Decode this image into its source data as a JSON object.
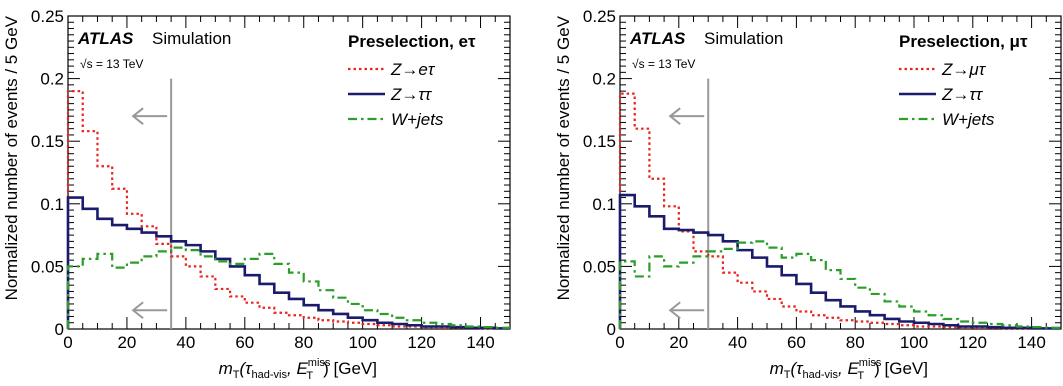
{
  "chart_data": [
    {
      "type": "line",
      "ylabel": "Normalized number of events / 5 GeV",
      "xlabel": "m_T(τ_had-vis, E_T^miss) [GeV]",
      "xlabel_parts": {
        "m": "m",
        "T": "T",
        "tau": "(τ",
        "had": "had-vis",
        "sep": ", E",
        "miss": "miss",
        "T2": "T",
        "unit": ") [GeV]"
      },
      "xlim": [
        0,
        150
      ],
      "ylim": [
        0,
        0.25
      ],
      "x_ticks": [
        "0",
        "20",
        "40",
        "60",
        "80",
        "100",
        "120",
        "140"
      ],
      "y_ticks": [
        "0",
        "0.05",
        "0.1",
        "0.15",
        "0.2",
        "0.25"
      ],
      "bin_width": 5,
      "experiment": "ATLAS",
      "experiment_sub": "Simulation",
      "energy": "√s = 13 TeV",
      "legend_title": "Preselection, eτ",
      "legend_position": "top-right",
      "cut_value": 35,
      "cut_direction": "left",
      "series": [
        {
          "name": "Z→eτ",
          "style": "dotted",
          "color": "#e8251f",
          "values": [
            0.19,
            0.158,
            0.13,
            0.112,
            0.092,
            0.082,
            0.068,
            0.058,
            0.05,
            0.042,
            0.032,
            0.026,
            0.021,
            0.017,
            0.013,
            0.011,
            0.009,
            0.007,
            0.006,
            0.005,
            0.004,
            0.003,
            0.002,
            0.002,
            0.0015,
            0.001,
            0.001,
            0.001,
            0.0005,
            0.0005
          ]
        },
        {
          "name": "Z→ττ",
          "style": "solid",
          "color": "#1b1b6b",
          "values": [
            0.105,
            0.096,
            0.088,
            0.083,
            0.08,
            0.077,
            0.074,
            0.07,
            0.067,
            0.062,
            0.056,
            0.05,
            0.043,
            0.036,
            0.029,
            0.024,
            0.019,
            0.015,
            0.012,
            0.009,
            0.007,
            0.005,
            0.004,
            0.003,
            0.002,
            0.002,
            0.0015,
            0.001,
            0.001,
            0.0005
          ]
        },
        {
          "name": "W+jets",
          "style": "dashdot",
          "color": "#2a9d2a",
          "values": [
            0.05,
            0.056,
            0.06,
            0.049,
            0.053,
            0.058,
            0.062,
            0.065,
            0.063,
            0.058,
            0.054,
            0.052,
            0.056,
            0.06,
            0.052,
            0.045,
            0.038,
            0.031,
            0.025,
            0.02,
            0.015,
            0.012,
            0.009,
            0.007,
            0.005,
            0.004,
            0.003,
            0.002,
            0.0015,
            0.001
          ]
        }
      ]
    },
    {
      "type": "line",
      "ylabel": "Normalized number of events / 5 GeV",
      "xlabel": "m_T(τ_had-vis, E_T^miss) [GeV]",
      "xlabel_parts": {
        "m": "m",
        "T": "T",
        "tau": "(τ",
        "had": "had-vis",
        "sep": ", E",
        "miss": "miss",
        "T2": "T",
        "unit": ") [GeV]"
      },
      "xlim": [
        0,
        150
      ],
      "ylim": [
        0,
        0.25
      ],
      "x_ticks": [
        "0",
        "20",
        "40",
        "60",
        "80",
        "100",
        "120",
        "140"
      ],
      "y_ticks": [
        "0",
        "0.05",
        "0.1",
        "0.15",
        "0.2",
        "0.25"
      ],
      "bin_width": 5,
      "experiment": "ATLAS",
      "experiment_sub": "Simulation",
      "energy": "√s = 13 TeV",
      "legend_title": "Preselection, μτ",
      "legend_position": "top-right",
      "cut_value": 30,
      "cut_direction": "left",
      "series": [
        {
          "name": "Z→μτ",
          "style": "dotted",
          "color": "#e8251f",
          "values": [
            0.188,
            0.16,
            0.12,
            0.098,
            0.078,
            0.062,
            0.058,
            0.045,
            0.037,
            0.03,
            0.024,
            0.018,
            0.014,
            0.011,
            0.009,
            0.007,
            0.006,
            0.005,
            0.004,
            0.003,
            0.002,
            0.002,
            0.0015,
            0.001,
            0.001,
            0.001,
            0.0005,
            0.0005,
            0.0005,
            0.0005
          ]
        },
        {
          "name": "Z→ττ",
          "style": "solid",
          "color": "#1b1b6b",
          "values": [
            0.107,
            0.098,
            0.09,
            0.08,
            0.079,
            0.077,
            0.075,
            0.07,
            0.063,
            0.057,
            0.05,
            0.043,
            0.036,
            0.029,
            0.023,
            0.018,
            0.014,
            0.011,
            0.008,
            0.006,
            0.005,
            0.004,
            0.003,
            0.002,
            0.002,
            0.0015,
            0.001,
            0.001,
            0.0005,
            0.0005
          ]
        },
        {
          "name": "W+jets",
          "style": "dashdot",
          "color": "#2a9d2a",
          "values": [
            0.054,
            0.042,
            0.058,
            0.05,
            0.053,
            0.058,
            0.062,
            0.064,
            0.069,
            0.07,
            0.065,
            0.057,
            0.06,
            0.055,
            0.047,
            0.04,
            0.033,
            0.028,
            0.022,
            0.018,
            0.014,
            0.011,
            0.008,
            0.006,
            0.005,
            0.004,
            0.003,
            0.002,
            0.0015,
            0.001
          ]
        }
      ]
    }
  ]
}
